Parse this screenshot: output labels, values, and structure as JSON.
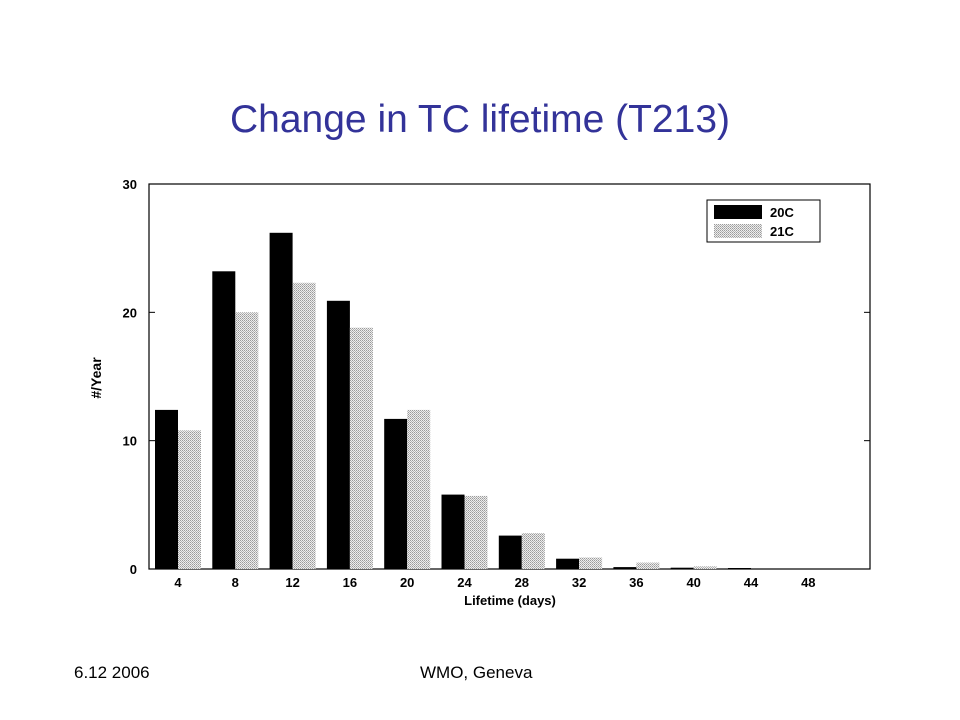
{
  "slide": {
    "title": "Change in  TC lifetime (T213)",
    "footer_date": "6.12 2006",
    "footer_org": "WMO, Geneva"
  },
  "chart_data": {
    "type": "bar",
    "xlabel": "Lifetime (days)",
    "ylabel": "#/Year",
    "categories": [
      "4",
      "8",
      "12",
      "16",
      "20",
      "24",
      "28",
      "32",
      "36",
      "40",
      "44",
      "48"
    ],
    "ylim": [
      0,
      30
    ],
    "yticks": [
      "0",
      "10",
      "20",
      "30"
    ],
    "grid": false,
    "legend_position": "top-right",
    "series": [
      {
        "name": "20C",
        "color": "#000000",
        "values": [
          12.4,
          23.2,
          26.2,
          20.9,
          11.7,
          5.8,
          2.6,
          0.8,
          0.15,
          0.1,
          0.08,
          0.03
        ]
      },
      {
        "name": "21C",
        "color": "#c8c8c8",
        "values": [
          10.8,
          20.0,
          22.3,
          18.8,
          12.4,
          5.7,
          2.8,
          0.9,
          0.5,
          0.2,
          0.0,
          0.0
        ]
      }
    ]
  }
}
